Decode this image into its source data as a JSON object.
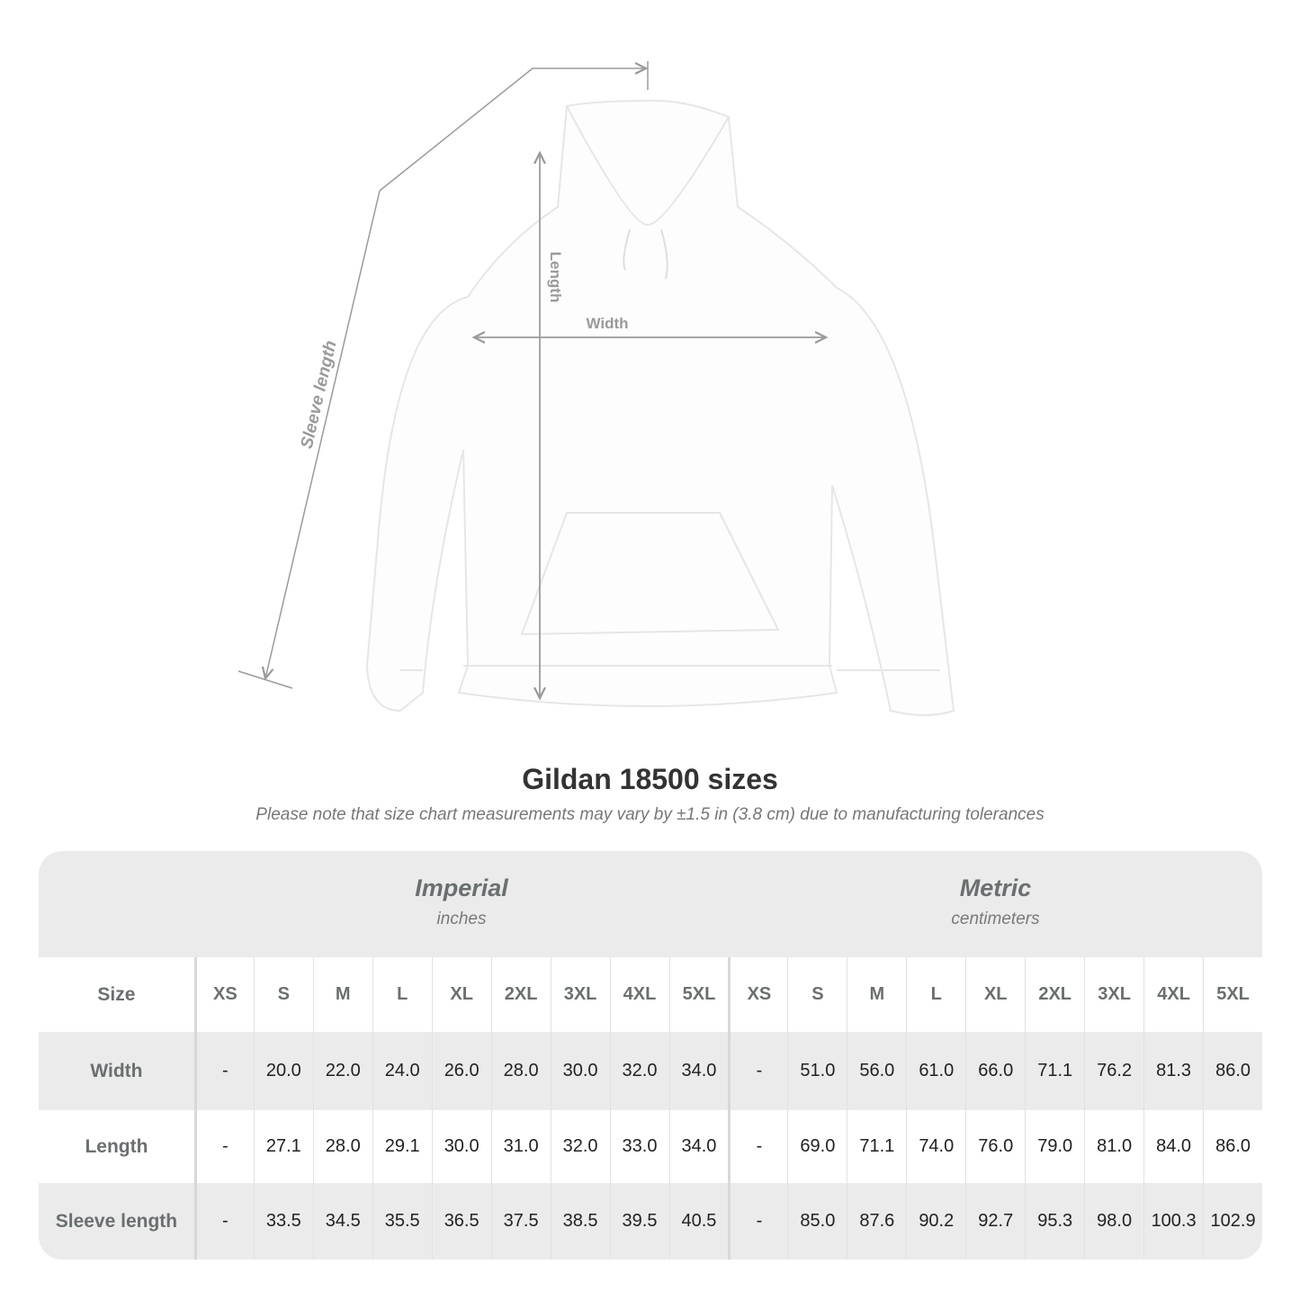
{
  "diagram": {
    "labels": {
      "length": "Length",
      "width": "Width",
      "sleeve": "Sleeve length"
    },
    "line_color": "#9a9a9a"
  },
  "title": "Gildan 18500 sizes",
  "note": "Please note that size chart measurements may vary by ±1.5 in (3.8 cm) due to manufacturing tolerances",
  "table": {
    "imperial": {
      "name": "Imperial",
      "unit": "inches"
    },
    "metric": {
      "name": "Metric",
      "unit": "centimeters"
    },
    "size_label": "Size",
    "sizes": [
      "XS",
      "S",
      "M",
      "L",
      "XL",
      "2XL",
      "3XL",
      "4XL",
      "5XL"
    ],
    "rows": [
      {
        "label": "Width",
        "imperial": [
          "-",
          "20.0",
          "22.0",
          "24.0",
          "26.0",
          "28.0",
          "30.0",
          "32.0",
          "34.0"
        ],
        "metric": [
          "-",
          "51.0",
          "56.0",
          "61.0",
          "66.0",
          "71.1",
          "76.2",
          "81.3",
          "86.0"
        ]
      },
      {
        "label": "Length",
        "imperial": [
          "-",
          "27.1",
          "28.0",
          "29.1",
          "30.0",
          "31.0",
          "32.0",
          "33.0",
          "34.0"
        ],
        "metric": [
          "-",
          "69.0",
          "71.1",
          "74.0",
          "76.0",
          "79.0",
          "81.0",
          "84.0",
          "86.0"
        ]
      },
      {
        "label": "Sleeve length",
        "imperial": [
          "-",
          "33.5",
          "34.5",
          "35.5",
          "36.5",
          "37.5",
          "38.5",
          "39.5",
          "40.5"
        ],
        "metric": [
          "-",
          "85.0",
          "87.6",
          "90.2",
          "92.7",
          "95.3",
          "98.0",
          "100.3",
          "102.9"
        ]
      }
    ]
  }
}
